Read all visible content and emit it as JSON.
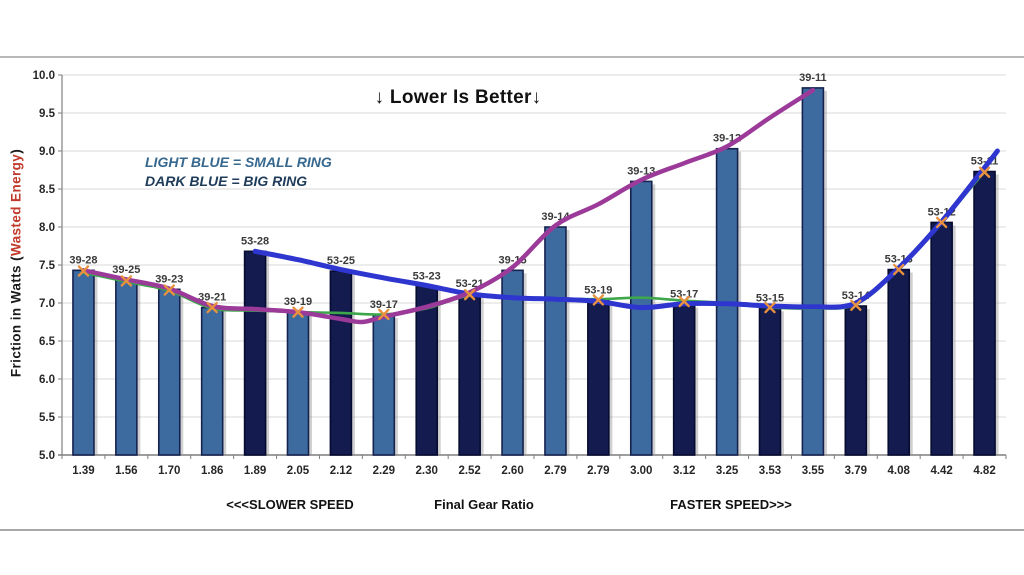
{
  "title": "↓ Lower Is Better↓",
  "legend": {
    "line1": "LIGHT BLUE = SMALL RING",
    "line2": "DARK BLUE = BIG RING"
  },
  "y_axis_title": {
    "prefix": "Friction in  Watts  (",
    "red": "Wasted Energy",
    "suffix": ")"
  },
  "x_axis_zones": {
    "left": "<<<SLOWER SPEED",
    "center": "Final Gear Ratio",
    "right": "FASTER SPEED>>>"
  },
  "chart_data": {
    "type": "bar",
    "title": "↓ Lower Is Better↓",
    "xlabel": "Final Gear Ratio",
    "ylabel": "Friction in Watts (Wasted Energy)",
    "ylim": [
      5.0,
      10.0
    ],
    "ytick_step": 0.5,
    "grid": true,
    "categories": [
      "1.39",
      "1.56",
      "1.70",
      "1.86",
      "1.89",
      "2.05",
      "2.12",
      "2.29",
      "2.30",
      "2.52",
      "2.60",
      "2.79",
      "2.79",
      "3.00",
      "3.12",
      "3.25",
      "3.53",
      "3.55",
      "3.79",
      "4.08",
      "4.42",
      "4.82"
    ],
    "bars": [
      {
        "ratio": "1.39",
        "gear": "39-28",
        "ring": "small",
        "value": 7.43
      },
      {
        "ratio": "1.56",
        "gear": "39-25",
        "ring": "small",
        "value": 7.3
      },
      {
        "ratio": "1.70",
        "gear": "39-23",
        "ring": "small",
        "value": 7.18
      },
      {
        "ratio": "1.86",
        "gear": "39-21",
        "ring": "small",
        "value": 6.94
      },
      {
        "ratio": "1.89",
        "gear": "53-28",
        "ring": "big",
        "value": 7.68
      },
      {
        "ratio": "2.05",
        "gear": "39-19",
        "ring": "small",
        "value": 6.88
      },
      {
        "ratio": "2.12",
        "gear": "53-25",
        "ring": "big",
        "value": 7.42
      },
      {
        "ratio": "2.29",
        "gear": "39-17",
        "ring": "small",
        "value": 6.84
      },
      {
        "ratio": "2.30",
        "gear": "53-23",
        "ring": "big",
        "value": 7.22
      },
      {
        "ratio": "2.52",
        "gear": "53-21",
        "ring": "big",
        "value": 7.12
      },
      {
        "ratio": "2.60",
        "gear": "39-15",
        "ring": "small",
        "value": 7.43
      },
      {
        "ratio": "2.79",
        "gear": "39-14",
        "ring": "small",
        "value": 8.0
      },
      {
        "ratio": "2.79",
        "gear": "53-19",
        "ring": "big",
        "value": 7.03
      },
      {
        "ratio": "3.00",
        "gear": "39-13",
        "ring": "small",
        "value": 8.6
      },
      {
        "ratio": "3.12",
        "gear": "53-17",
        "ring": "big",
        "value": 6.98
      },
      {
        "ratio": "3.25",
        "gear": "39-12",
        "ring": "small",
        "value": 9.03
      },
      {
        "ratio": "3.53",
        "gear": "53-15",
        "ring": "big",
        "value": 6.93
      },
      {
        "ratio": "3.55",
        "gear": "39-11",
        "ring": "small",
        "value": 9.83
      },
      {
        "ratio": "3.79",
        "gear": "53-14",
        "ring": "big",
        "value": 6.96
      },
      {
        "ratio": "4.08",
        "gear": "53-13",
        "ring": "big",
        "value": 7.44
      },
      {
        "ratio": "4.42",
        "gear": "53-12",
        "ring": "big",
        "value": 8.06
      },
      {
        "ratio": "4.82",
        "gear": "53-11",
        "ring": "big",
        "value": 8.73
      }
    ],
    "series": [
      {
        "name": "small-ring-trend",
        "color": "#9c3a9a",
        "width": 4.5,
        "points": [
          [
            0,
            7.43
          ],
          [
            1,
            7.31
          ],
          [
            2,
            7.19
          ],
          [
            3,
            6.96
          ],
          [
            4,
            6.92
          ],
          [
            5,
            6.88
          ],
          [
            6,
            6.79
          ],
          [
            6.5,
            6.75
          ],
          [
            7,
            6.82
          ],
          [
            8,
            6.95
          ],
          [
            9,
            7.14
          ],
          [
            10,
            7.47
          ],
          [
            11,
            8.02
          ],
          [
            12,
            8.3
          ],
          [
            13,
            8.62
          ],
          [
            14,
            8.84
          ],
          [
            15,
            9.06
          ],
          [
            16,
            9.44
          ],
          [
            17,
            9.8
          ]
        ]
      },
      {
        "name": "big-ring-trend",
        "color": "#2e36cf",
        "width": 5,
        "points": [
          [
            4,
            7.68
          ],
          [
            5,
            7.57
          ],
          [
            6,
            7.44
          ],
          [
            7,
            7.33
          ],
          [
            8,
            7.23
          ],
          [
            9,
            7.12
          ],
          [
            10,
            7.07
          ],
          [
            11,
            7.05
          ],
          [
            12,
            7.02
          ],
          [
            13,
            6.94
          ],
          [
            14,
            6.99
          ],
          [
            15,
            6.99
          ],
          [
            16,
            6.96
          ],
          [
            17,
            6.95
          ],
          [
            18,
            7.0
          ],
          [
            19,
            7.46
          ],
          [
            20,
            8.07
          ],
          [
            21,
            8.78
          ],
          [
            21.3,
            9.0
          ]
        ]
      },
      {
        "name": "optimal-shift-path",
        "color": "#3ea64b",
        "width": 2.6,
        "points": [
          [
            0,
            7.4
          ],
          [
            1,
            7.28
          ],
          [
            2,
            7.16
          ],
          [
            3,
            6.93
          ],
          [
            4,
            6.9
          ],
          [
            5,
            6.88
          ],
          [
            6,
            6.87
          ],
          [
            7,
            6.85
          ],
          [
            8,
            6.93
          ],
          [
            9,
            7.1
          ],
          [
            10,
            7.08
          ],
          [
            11,
            7.06
          ],
          [
            12,
            7.05
          ],
          [
            13,
            7.07
          ],
          [
            14,
            7.03
          ],
          [
            15,
            7.0
          ],
          [
            16,
            6.94
          ],
          [
            17,
            6.93
          ],
          [
            18,
            6.98
          ],
          [
            19,
            7.44
          ],
          [
            20,
            8.06
          ],
          [
            21,
            8.73
          ]
        ]
      }
    ],
    "markers": {
      "name": "shift-point-markers",
      "shape": "x",
      "color": "#e8913e",
      "points": [
        [
          0,
          7.42
        ],
        [
          1,
          7.29
        ],
        [
          2,
          7.17
        ],
        [
          3,
          6.94
        ],
        [
          5,
          6.88
        ],
        [
          7,
          6.85
        ],
        [
          9,
          7.11
        ],
        [
          12,
          7.04
        ],
        [
          14,
          7.02
        ],
        [
          16,
          6.94
        ],
        [
          18,
          6.97
        ],
        [
          19,
          7.44
        ],
        [
          20,
          8.06
        ],
        [
          21,
          8.72
        ]
      ]
    },
    "colors": {
      "small_ring_bar": "#3d6ba0",
      "small_ring_bar_border": "#16224e",
      "big_ring_bar": "#141b4e",
      "big_ring_bar_border": "#060b30",
      "bar_shadow": "#8a8a8a",
      "gridline": "#dadada",
      "axis": "#7f7f7f",
      "tick_text": "#262626",
      "bar_label_text": "#3a3a3a"
    }
  }
}
